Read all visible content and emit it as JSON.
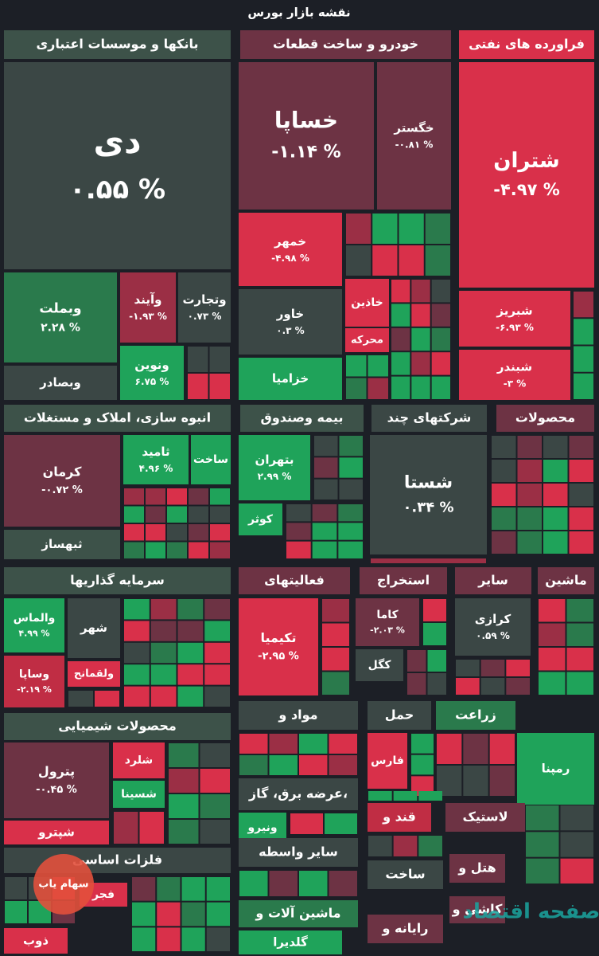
{
  "title": "نقشه بازار بورس",
  "sectors": [
    {
      "name": "بانکها و موسسات اعتباری",
      "stocks": [
        {
          "name": "دی",
          "change": "۰.۵۵ %"
        },
        {
          "name": "وبملت",
          "change": "۲.۲۸ %"
        },
        {
          "name": "وآیند",
          "change": "-۱.۹۳ %"
        },
        {
          "name": "وتجارت",
          "change": "۰.۷۳ %"
        },
        {
          "name": "ونوین",
          "change": "۶.۷۵ %"
        },
        {
          "name": "وبصادر"
        }
      ]
    },
    {
      "name": "خودرو و ساخت قطعات",
      "stocks": [
        {
          "name": "خساپا",
          "change": "-۱.۱۴ %"
        },
        {
          "name": "خگستر",
          "change": "-۰.۸۱ %"
        },
        {
          "name": "خمهر",
          "change": "-۴.۹۸ %"
        },
        {
          "name": "خاور",
          "change": "۰.۳ %"
        },
        {
          "name": "خزامیا"
        },
        {
          "name": "خاذین"
        },
        {
          "name": "محرکه"
        }
      ]
    },
    {
      "name": "فراورده های نفتی",
      "stocks": [
        {
          "name": "شتران",
          "change": "-۴.۹۷ %"
        },
        {
          "name": "شبریز",
          "change": "-۶.۹۳ %"
        },
        {
          "name": "شبندر",
          "change": "-۳ %"
        }
      ]
    },
    {
      "name": "انبوه سازی، املاک و مستغلات",
      "stocks": [
        {
          "name": "کرمان",
          "change": "-۰.۷۲ %"
        },
        {
          "name": "ثامید",
          "change": "۴.۹۶ %"
        },
        {
          "name": "ساخت"
        },
        {
          "name": "ثبهساز"
        }
      ]
    },
    {
      "name": "بیمه وصندوق",
      "stocks": [
        {
          "name": "بتهران",
          "change": "۲.۹۹ %"
        },
        {
          "name": "کوثر"
        }
      ]
    },
    {
      "name": "شرکتهای چند",
      "stocks": [
        {
          "name": "شستا",
          "change": "۰.۳۴ %"
        }
      ]
    },
    {
      "name": "محصولات",
      "stocks": []
    },
    {
      "name": "سرمایه گذاریها",
      "stocks": [
        {
          "name": "والماس",
          "change": "۴.۹۹ %"
        },
        {
          "name": "وساپا",
          "change": "-۲.۱۹ %"
        },
        {
          "name": "شهر"
        },
        {
          "name": "ولقمانح"
        }
      ]
    },
    {
      "name": "فعالیتهای",
      "stocks": [
        {
          "name": "تکیمیا",
          "change": "-۲.۹۵ %"
        }
      ]
    },
    {
      "name": "استخراج",
      "stocks": [
        {
          "name": "کاما",
          "change": "-۲.۰۳ %"
        },
        {
          "name": "کگل"
        }
      ]
    },
    {
      "name": "سایر",
      "stocks": [
        {
          "name": "کرازی",
          "change": "۰.۵۹ %"
        }
      ]
    },
    {
      "name": "ماشین",
      "stocks": []
    },
    {
      "name": "محصولات شیمیایی",
      "stocks": [
        {
          "name": "پترول",
          "change": "-۰.۴۵ %"
        },
        {
          "name": "شلرد"
        },
        {
          "name": "شسینا"
        },
        {
          "name": "شپترو"
        }
      ]
    },
    {
      "name": "مواد و",
      "stocks": []
    },
    {
      "name": "حمل",
      "stocks": [
        {
          "name": "فارس"
        }
      ]
    },
    {
      "name": "زراعت",
      "stocks": [
        {
          "name": "رمپنا"
        }
      ]
    },
    {
      "name": "عرضه برق، گاز،",
      "stocks": [
        {
          "name": "ونیرو"
        }
      ]
    },
    {
      "name": "قند و",
      "stocks": []
    },
    {
      "name": "لاستیک",
      "stocks": []
    },
    {
      "name": "فلزات اساسی",
      "stocks": [
        {
          "name": "فجر"
        },
        {
          "name": "ذوب"
        }
      ]
    },
    {
      "name": "سایر واسطه",
      "stocks": []
    },
    {
      "name": "ساخت",
      "stocks": []
    },
    {
      "name": "هتل و",
      "stocks": []
    },
    {
      "name": "ماشین آلات و",
      "stocks": [
        {
          "name": "گلدیرا"
        }
      ]
    },
    {
      "name": "رایانه و",
      "stocks": []
    },
    {
      "name": "کاشی و",
      "stocks": []
    }
  ],
  "watermarks": [
    "سهام یاب",
    "صفحه اقتصاد"
  ]
}
